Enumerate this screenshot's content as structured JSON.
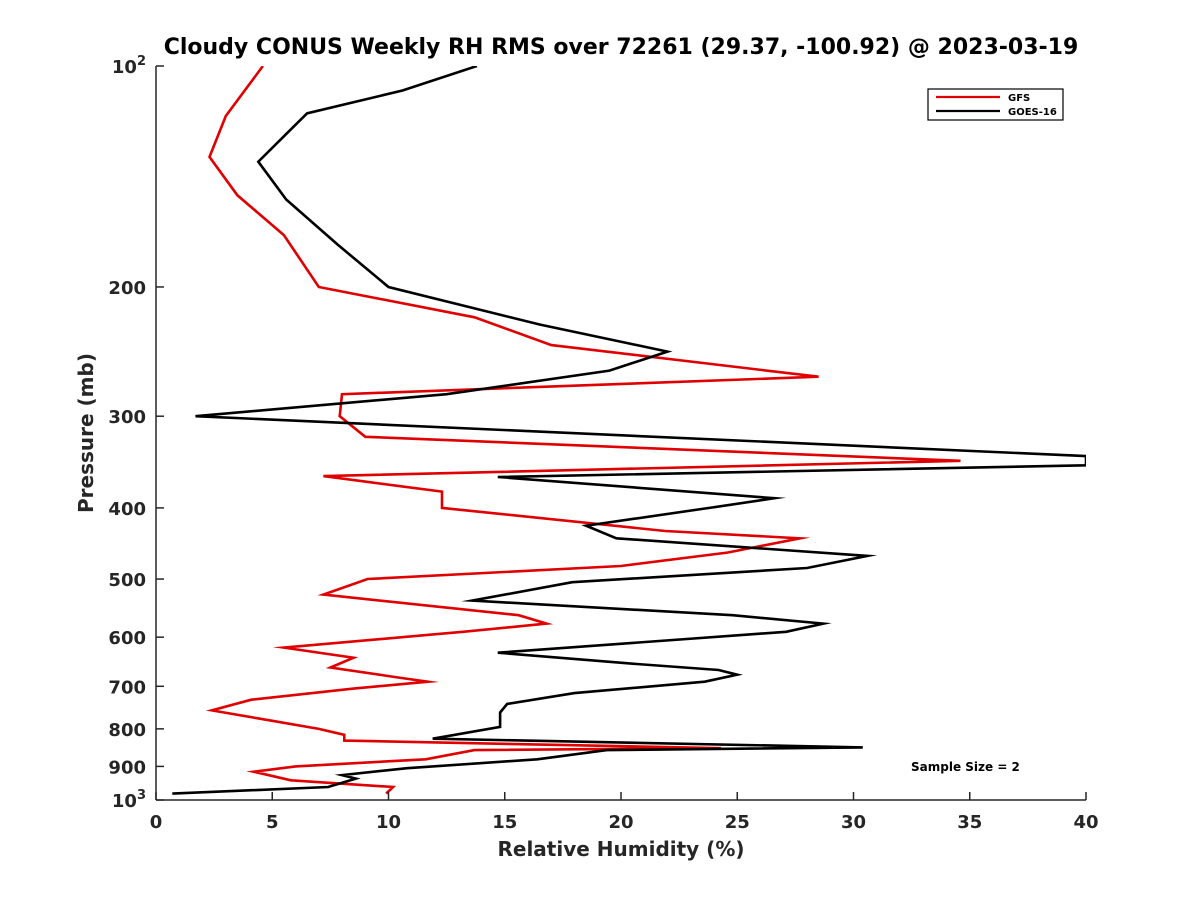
{
  "chart_data": {
    "type": "line",
    "title": "Cloudy CONUS Weekly RH RMS over 72261 (29.37, -100.92) @ 2023-03-19",
    "xlabel": "Relative Humidity (%)",
    "ylabel": "Pressure (mb)",
    "xlim": [
      0,
      40
    ],
    "ylim": [
      1000,
      100
    ],
    "yscale": "log",
    "y_reversed": true,
    "xticks": [
      0,
      5,
      10,
      15,
      20,
      25,
      30,
      35,
      40
    ],
    "xtick_labels": [
      "0",
      "5",
      "10",
      "15",
      "20",
      "25",
      "30",
      "35",
      "40"
    ],
    "yticks": [
      100,
      200,
      300,
      400,
      500,
      600,
      700,
      800,
      900,
      1000
    ],
    "ytick_labels": [
      {
        "base": "10",
        "exp": "2"
      },
      {
        "base": "200",
        "exp": ""
      },
      {
        "base": "300",
        "exp": ""
      },
      {
        "base": "400",
        "exp": ""
      },
      {
        "base": "500",
        "exp": ""
      },
      {
        "base": "600",
        "exp": ""
      },
      {
        "base": "700",
        "exp": ""
      },
      {
        "base": "800",
        "exp": ""
      },
      {
        "base": "900",
        "exp": ""
      },
      {
        "base": "10",
        "exp": "3"
      }
    ],
    "grid": false,
    "legend_position": "top-right",
    "annotation": "Sample Size = 2",
    "series": [
      {
        "name": "GFS",
        "color": "#e00000",
        "points": [
          [
            4.6,
            100
          ],
          [
            3.0,
            117
          ],
          [
            2.3,
            133
          ],
          [
            3.5,
            150
          ],
          [
            5.5,
            170
          ],
          [
            7.0,
            200
          ],
          [
            13.7,
            220
          ],
          [
            17.0,
            240
          ],
          [
            28.5,
            265
          ],
          [
            8.0,
            280
          ],
          [
            7.9,
            300
          ],
          [
            9.0,
            320
          ],
          [
            34.6,
            345
          ],
          [
            7.2,
            362
          ],
          [
            12.3,
            380
          ],
          [
            12.3,
            400
          ],
          [
            21.9,
            430
          ],
          [
            27.7,
            440
          ],
          [
            24.6,
            460
          ],
          [
            20.0,
            480
          ],
          [
            9.1,
            500
          ],
          [
            7.2,
            525
          ],
          [
            15.6,
            560
          ],
          [
            16.8,
            575
          ],
          [
            13.2,
            590
          ],
          [
            5.5,
            620
          ],
          [
            8.5,
            640
          ],
          [
            7.5,
            660
          ],
          [
            10.3,
            680
          ],
          [
            11.7,
            690
          ],
          [
            8.5,
            705
          ],
          [
            4.1,
            730
          ],
          [
            2.4,
            755
          ],
          [
            5.0,
            780
          ],
          [
            7.0,
            800
          ],
          [
            8.1,
            815
          ],
          [
            8.1,
            830
          ],
          [
            24.3,
            850
          ],
          [
            13.7,
            855
          ],
          [
            11.6,
            880
          ],
          [
            6.0,
            900
          ],
          [
            4.2,
            915
          ],
          [
            5.8,
            940
          ],
          [
            10.2,
            960
          ],
          [
            9.9,
            980
          ]
        ]
      },
      {
        "name": "GOES-16",
        "color": "#000000",
        "points": [
          [
            13.8,
            100
          ],
          [
            10.6,
            108
          ],
          [
            6.5,
            116
          ],
          [
            4.4,
            135
          ],
          [
            5.6,
            152
          ],
          [
            7.8,
            175
          ],
          [
            10.0,
            200
          ],
          [
            16.5,
            225
          ],
          [
            22.0,
            245
          ],
          [
            19.5,
            260
          ],
          [
            12.5,
            280
          ],
          [
            1.7,
            300
          ],
          [
            40.0,
            340
          ],
          [
            40.0,
            350
          ],
          [
            14.7,
            363
          ],
          [
            26.6,
            388
          ],
          [
            23.8,
            400
          ],
          [
            18.5,
            423
          ],
          [
            19.8,
            440
          ],
          [
            30.6,
            465
          ],
          [
            28.0,
            483
          ],
          [
            17.9,
            505
          ],
          [
            13.6,
            535
          ],
          [
            24.8,
            560
          ],
          [
            28.7,
            575
          ],
          [
            27.1,
            590
          ],
          [
            14.7,
            630
          ],
          [
            20.5,
            652
          ],
          [
            24.2,
            665
          ],
          [
            25.0,
            675
          ],
          [
            23.6,
            690
          ],
          [
            18.0,
            715
          ],
          [
            15.1,
            740
          ],
          [
            14.8,
            760
          ],
          [
            14.8,
            795
          ],
          [
            11.9,
            825
          ],
          [
            30.4,
            848
          ],
          [
            19.4,
            855
          ],
          [
            16.4,
            880
          ],
          [
            10.8,
            905
          ],
          [
            8.0,
            925
          ],
          [
            8.6,
            935
          ],
          [
            7.4,
            960
          ],
          [
            0.7,
            980
          ]
        ]
      }
    ]
  }
}
